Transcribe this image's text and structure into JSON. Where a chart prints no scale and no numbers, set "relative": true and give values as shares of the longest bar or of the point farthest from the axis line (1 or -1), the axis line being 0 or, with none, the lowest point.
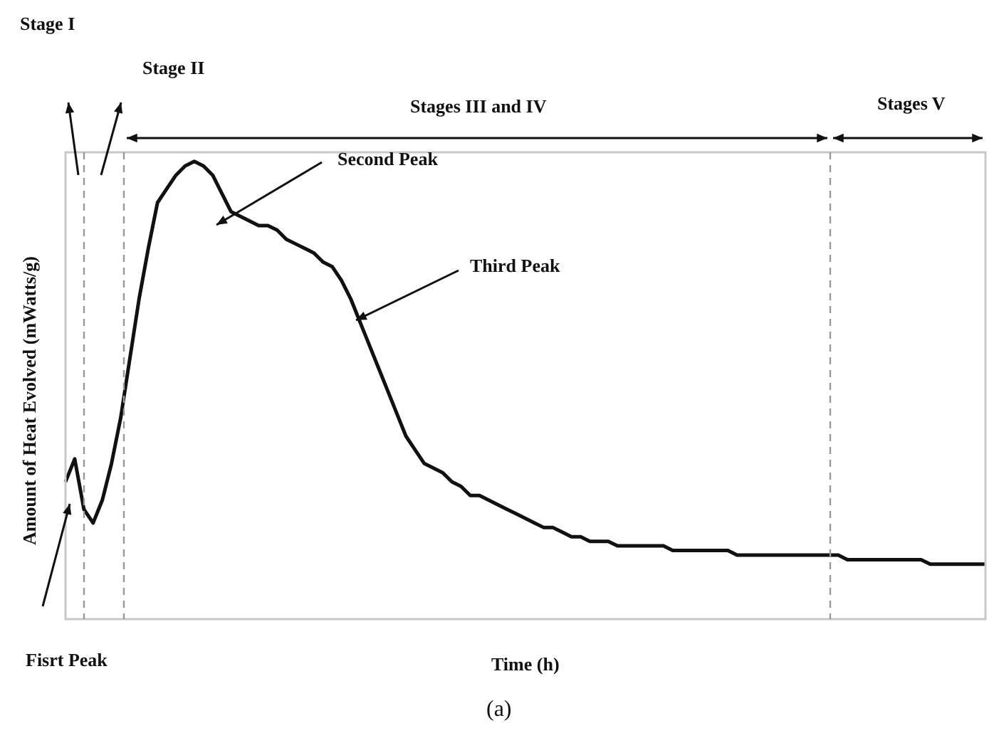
{
  "chart_data": {
    "type": "line",
    "relative": true,
    "xlabel": "Time (h)",
    "ylabel": "Amount of Heat Evolved (mWatts/g)",
    "marker": "none",
    "line_style": "solid",
    "categories": [
      null,
      null,
      null,
      null,
      null,
      null,
      null,
      null,
      null,
      null,
      null,
      null,
      null,
      null,
      null,
      null,
      null,
      null,
      null,
      null,
      null,
      null,
      null,
      null,
      null,
      null,
      null,
      null,
      null,
      null,
      null,
      null,
      null,
      null,
      null,
      null,
      null,
      null,
      null,
      null,
      null,
      null,
      null,
      null,
      null,
      null,
      null,
      null,
      null,
      null,
      null,
      null,
      null,
      null,
      null,
      null,
      null,
      null,
      null,
      null,
      null,
      null,
      null,
      null,
      null,
      null,
      null,
      null,
      null,
      null,
      null,
      null,
      null,
      null,
      null,
      null,
      null,
      null,
      null,
      null,
      null,
      null,
      null,
      null,
      null,
      null,
      null,
      null,
      null,
      null,
      null,
      null,
      null,
      null,
      null,
      null,
      null,
      null,
      null,
      null,
      null
    ],
    "series": [
      {
        "color": "#111111",
        "values": [
          0.3,
          0.35,
          0.24,
          0.21,
          0.26,
          0.34,
          0.44,
          0.57,
          0.7,
          0.81,
          0.91,
          0.94,
          0.97,
          0.99,
          1.0,
          0.99,
          0.97,
          0.93,
          0.89,
          0.88,
          0.87,
          0.86,
          0.86,
          0.85,
          0.83,
          0.82,
          0.81,
          0.8,
          0.78,
          0.77,
          0.74,
          0.7,
          0.65,
          0.6,
          0.55,
          0.5,
          0.45,
          0.4,
          0.37,
          0.34,
          0.33,
          0.32,
          0.3,
          0.29,
          0.27,
          0.27,
          0.26,
          0.25,
          0.24,
          0.23,
          0.22,
          0.21,
          0.2,
          0.2,
          0.19,
          0.18,
          0.18,
          0.17,
          0.17,
          0.17,
          0.16,
          0.16,
          0.16,
          0.16,
          0.16,
          0.16,
          0.15,
          0.15,
          0.15,
          0.15,
          0.15,
          0.15,
          0.15,
          0.14,
          0.14,
          0.14,
          0.14,
          0.14,
          0.14,
          0.14,
          0.14,
          0.14,
          0.14,
          0.14,
          0.14,
          0.13,
          0.13,
          0.13,
          0.13,
          0.13,
          0.13,
          0.13,
          0.13,
          0.13,
          0.12,
          0.12,
          0.12,
          0.12,
          0.12,
          0.12,
          0.12
        ]
      }
    ],
    "annotations": [
      "Stage I",
      "Stage II",
      "Stages III and IV",
      "Stages V",
      "Fisrt Peak",
      "Second Peak",
      "Third Peak",
      "(a)"
    ]
  }
}
